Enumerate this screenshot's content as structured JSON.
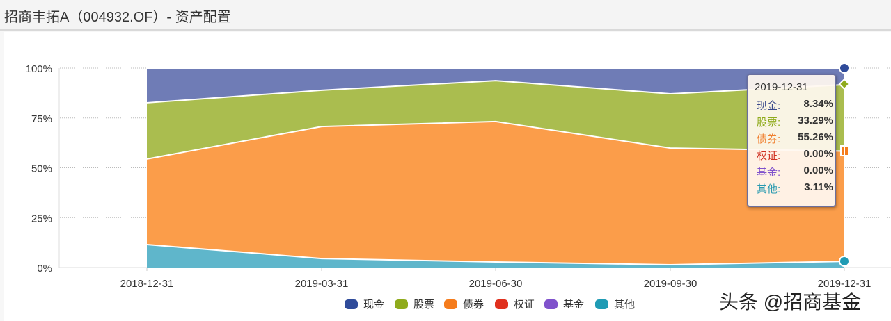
{
  "header": {
    "title": "招商丰拓A（004932.OF）- 资产配置"
  },
  "chart_data": {
    "type": "area",
    "stacked": true,
    "normalized": true,
    "title": "招商丰拓A（004932.OF）- 资产配置",
    "x": [
      "2018-12-31",
      "2019-03-31",
      "2019-06-30",
      "2019-09-30",
      "2019-12-31"
    ],
    "yticks": [
      "0%",
      "25%",
      "50%",
      "75%",
      "100%"
    ],
    "ylim": [
      0,
      100
    ],
    "grid": true,
    "legend_position": "bottom",
    "series": [
      {
        "name": "现金",
        "color": "#2f4b9a",
        "fill": "#6f7cb6",
        "values": [
          17.4,
          11.1,
          6.3,
          12.9,
          8.34
        ]
      },
      {
        "name": "股票",
        "color": "#8fab1c",
        "fill": "#aabd4f",
        "values": [
          28.2,
          18.2,
          20.5,
          27.2,
          33.29
        ]
      },
      {
        "name": "债券",
        "color": "#f57c1c",
        "fill": "#fb9d4a",
        "values": [
          42.9,
          66.2,
          70.4,
          58.5,
          55.26
        ]
      },
      {
        "name": "权证",
        "color": "#e0301e",
        "fill": "#e0301e",
        "values": [
          0,
          0,
          0,
          0,
          0.0
        ]
      },
      {
        "name": "基金",
        "color": "#8052cc",
        "fill": "#8052cc",
        "values": [
          0,
          0,
          0,
          0,
          0.0
        ]
      },
      {
        "name": "其他",
        "color": "#1f9bb4",
        "fill": "#5fb6cb",
        "values": [
          11.5,
          4.5,
          2.8,
          1.4,
          3.11
        ]
      }
    ]
  },
  "tooltip": {
    "date": "2019-12-31",
    "rows": [
      {
        "label": "现金:",
        "value": "8.34%",
        "color": "#3b4a8c"
      },
      {
        "label": "股票:",
        "value": "33.29%",
        "color": "#8fab1c"
      },
      {
        "label": "债券:",
        "value": "55.26%",
        "color": "#f08030"
      },
      {
        "label": "权证:",
        "value": "0.00%",
        "color": "#d03020"
      },
      {
        "label": "基金:",
        "value": "0.00%",
        "color": "#8052cc"
      },
      {
        "label": "其他:",
        "value": "3.11%",
        "color": "#2a9ab0"
      }
    ]
  },
  "watermark": "头条 @招商基金"
}
